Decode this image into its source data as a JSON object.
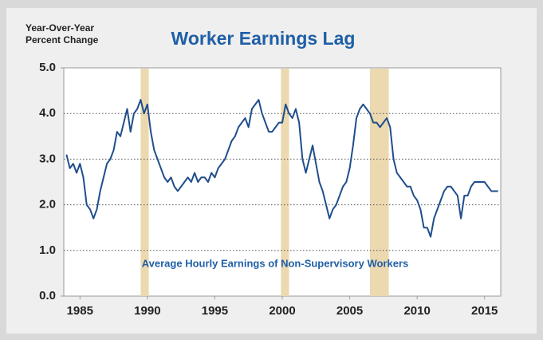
{
  "chart_data": {
    "type": "line",
    "title": "Worker Earnings Lag",
    "ylabel": [
      "Year-Over-Year",
      "Percent Change"
    ],
    "annotation": "Average Hourly Earnings of Non-Supervisory Workers",
    "color": "#1f4e8c",
    "recession_color": "#ecd9b0",
    "grid": true,
    "xlim": [
      1983.8,
      2016.2
    ],
    "ylim": [
      0,
      5
    ],
    "xticks": [
      1985,
      1990,
      1995,
      2000,
      2005,
      2010,
      2015
    ],
    "yticks": [
      {
        "value": 0,
        "label": "0.0"
      },
      {
        "value": 1,
        "label": "1.0"
      },
      {
        "value": 2,
        "label": "2.0"
      },
      {
        "value": 3,
        "label": "3.0"
      },
      {
        "value": 4,
        "label": "4.0"
      },
      {
        "value": 5,
        "label": "5.0"
      }
    ],
    "recessions": [
      [
        1989.5,
        1990.1
      ],
      [
        1999.9,
        2000.5
      ],
      [
        2006.5,
        2007.9
      ]
    ],
    "x": [
      1984.0,
      1984.25,
      1984.5,
      1984.75,
      1985.0,
      1985.25,
      1985.5,
      1985.75,
      1986.0,
      1986.25,
      1986.5,
      1986.75,
      1987.0,
      1987.25,
      1987.5,
      1987.75,
      1988.0,
      1988.25,
      1988.5,
      1988.75,
      1989.0,
      1989.25,
      1989.5,
      1989.75,
      1990.0,
      1990.25,
      1990.5,
      1990.75,
      1991.0,
      1991.25,
      1991.5,
      1991.75,
      1992.0,
      1992.25,
      1992.5,
      1992.75,
      1993.0,
      1993.25,
      1993.5,
      1993.75,
      1994.0,
      1994.25,
      1994.5,
      1994.75,
      1995.0,
      1995.25,
      1995.5,
      1995.75,
      1996.0,
      1996.25,
      1996.5,
      1996.75,
      1997.0,
      1997.25,
      1997.5,
      1997.75,
      1998.0,
      1998.25,
      1998.5,
      1998.75,
      1999.0,
      1999.25,
      1999.5,
      1999.75,
      2000.0,
      2000.25,
      2000.5,
      2000.75,
      2001.0,
      2001.25,
      2001.5,
      2001.75,
      2002.0,
      2002.25,
      2002.5,
      2002.75,
      2003.0,
      2003.25,
      2003.5,
      2003.75,
      2004.0,
      2004.25,
      2004.5,
      2004.75,
      2005.0,
      2005.25,
      2005.5,
      2005.75,
      2006.0,
      2006.25,
      2006.5,
      2006.75,
      2007.0,
      2007.25,
      2007.5,
      2007.75,
      2008.0,
      2008.25,
      2008.5,
      2008.75,
      2009.0,
      2009.25,
      2009.5,
      2009.75,
      2010.0,
      2010.25,
      2010.5,
      2010.75,
      2011.0,
      2011.25,
      2011.5,
      2011.75,
      2012.0,
      2012.25,
      2012.5,
      2012.75,
      2013.0,
      2013.25,
      2013.5,
      2013.75,
      2014.0,
      2014.25,
      2014.5,
      2014.75,
      2015.0,
      2015.25,
      2015.5,
      2015.75,
      2016.0
    ],
    "values": [
      3.1,
      2.8,
      2.9,
      2.7,
      2.9,
      2.6,
      2.0,
      1.9,
      1.7,
      1.9,
      2.3,
      2.6,
      2.9,
      3.0,
      3.2,
      3.6,
      3.5,
      3.8,
      4.1,
      3.6,
      4.0,
      4.1,
      4.3,
      4.0,
      4.2,
      3.6,
      3.2,
      3.0,
      2.8,
      2.6,
      2.5,
      2.6,
      2.4,
      2.3,
      2.4,
      2.5,
      2.6,
      2.5,
      2.7,
      2.5,
      2.6,
      2.6,
      2.5,
      2.7,
      2.6,
      2.8,
      2.9,
      3.0,
      3.2,
      3.4,
      3.5,
      3.7,
      3.8,
      3.9,
      3.7,
      4.1,
      4.2,
      4.3,
      4.0,
      3.8,
      3.6,
      3.6,
      3.7,
      3.8,
      3.8,
      4.2,
      4.0,
      3.9,
      4.1,
      3.8,
      3.0,
      2.7,
      3.0,
      3.3,
      2.9,
      2.5,
      2.3,
      2.0,
      1.7,
      1.9,
      2.0,
      2.2,
      2.4,
      2.5,
      2.8,
      3.3,
      3.9,
      4.1,
      4.2,
      4.1,
      4.0,
      3.8,
      3.8,
      3.7,
      3.8,
      3.9,
      3.7,
      3.0,
      2.7,
      2.6,
      2.5,
      2.4,
      2.4,
      2.2,
      2.1,
      1.9,
      1.5,
      1.5,
      1.3,
      1.7,
      1.9,
      2.1,
      2.3,
      2.4,
      2.4,
      2.3,
      2.2,
      1.7,
      2.2,
      2.2,
      2.4,
      2.5,
      2.5,
      2.5,
      2.5,
      2.4,
      2.3,
      2.3,
      2.3
    ]
  }
}
